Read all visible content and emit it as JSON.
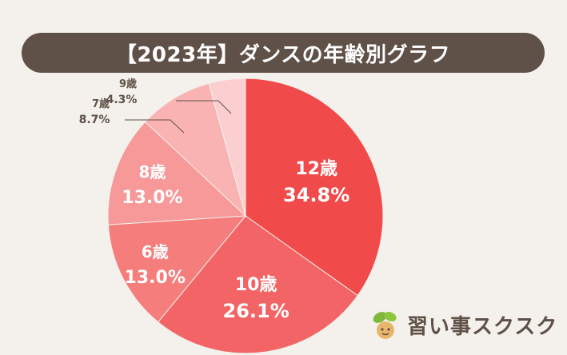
{
  "chart_data": {
    "type": "pie",
    "title": "【2023年】ダンスの年齢別グラフ",
    "slices": [
      {
        "label": "12歳",
        "value": 34.8,
        "pct": "34.8%",
        "color": "#f04a4a"
      },
      {
        "label": "10歳",
        "value": 26.1,
        "pct": "26.1%",
        "color": "#f26465"
      },
      {
        "label": "6歳",
        "value": 13.0,
        "pct": "13.0%",
        "color": "#f57d7c"
      },
      {
        "label": "8歳",
        "value": 13.0,
        "pct": "13.0%",
        "color": "#f79899"
      },
      {
        "label": "7歳",
        "value": 8.7,
        "pct": "8.7%",
        "color": "#f9b3b3"
      },
      {
        "label": "9歳",
        "value": 4.3,
        "pct": "4.3%",
        "color": "#fbcfd0"
      }
    ]
  },
  "brand": {
    "name": "習い事スクスク",
    "colors": {
      "leaf": "#7fb83a",
      "face": "#e8b66b"
    }
  },
  "colors": {
    "title_bg": "#5f5048",
    "background": "#f4f1ec"
  }
}
